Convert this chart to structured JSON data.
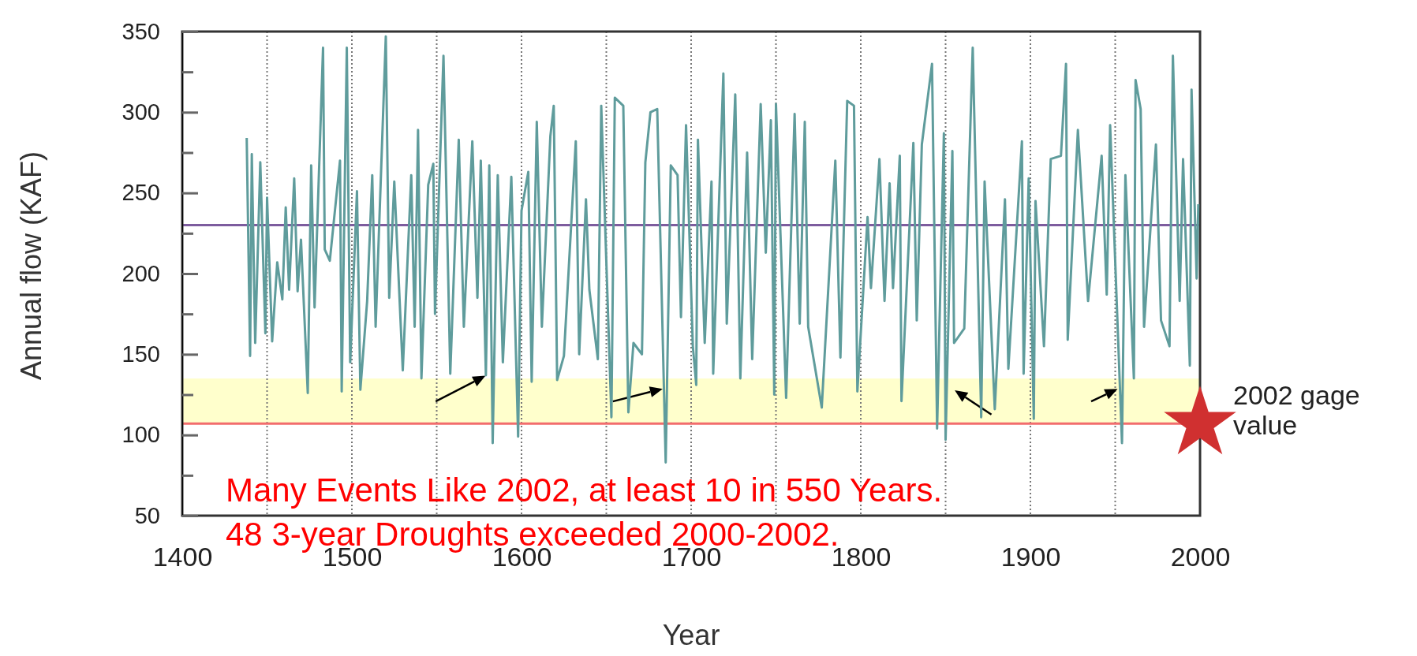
{
  "chart_data": {
    "type": "line",
    "xlabel": "Year",
    "ylabel": "Annual flow (KAF)",
    "xlim": [
      1400,
      2000
    ],
    "xticks": [
      1400,
      1500,
      1600,
      1700,
      1800,
      1900,
      2000
    ],
    "ylim": [
      50,
      350
    ],
    "yticks": [
      50,
      {
        "value": 75,
        "label": null
      },
      100,
      {
        "value": 125,
        "label": null
      },
      150,
      {
        "value": 175,
        "label": null
      },
      200,
      {
        "value": 225,
        "label": null
      },
      250,
      {
        "value": 275,
        "label": null
      },
      300,
      {
        "value": 325,
        "label": null
      },
      350
    ],
    "grid": "x",
    "marker": "none",
    "line_style": "solid",
    "series": [
      {
        "color": "#5f9c9c",
        "x": [
          1438,
          1440,
          1441,
          1443,
          1446,
          1449,
          1450,
          1453,
          1456,
          1459,
          1461,
          1463,
          1466,
          1468,
          1470,
          1474,
          1476,
          1478,
          1483,
          1484,
          1487,
          1493,
          1494,
          1497,
          1499,
          1503,
          1505,
          1509,
          1512,
          1514,
          1520,
          1522,
          1525,
          1530,
          1535,
          1537,
          1539,
          1541,
          1545,
          1548,
          1549,
          1554,
          1558,
          1563,
          1566,
          1571,
          1574,
          1576,
          1579,
          1581,
          1583,
          1586,
          1589,
          1594,
          1598,
          1600,
          1604,
          1606,
          1609,
          1612,
          1617,
          1619,
          1621,
          1625,
          1632,
          1634,
          1638,
          1640,
          1645,
          1647,
          1653,
          1655,
          1660,
          1663,
          1666,
          1671,
          1673,
          1676,
          1680,
          1682,
          1685,
          1688,
          1692,
          1694,
          1697,
          1701,
          1703,
          1704,
          1708,
          1712,
          1713,
          1719,
          1721,
          1726,
          1729,
          1733,
          1736,
          1741,
          1744,
          1747,
          1749,
          1750,
          1756,
          1761,
          1764,
          1767,
          1769,
          1777,
          1785,
          1788,
          1792,
          1796,
          1798,
          1804,
          1806,
          1811,
          1814,
          1817,
          1819,
          1823,
          1824,
          1831,
          1833,
          1836,
          1842,
          1845,
          1849,
          1850,
          1854,
          1855,
          1861,
          1866,
          1871,
          1873,
          1879,
          1885,
          1887,
          1895,
          1896,
          1899,
          1902,
          1903,
          1908,
          1912,
          1918,
          1921,
          1922,
          1928,
          1934,
          1942,
          1945,
          1947,
          1954,
          1956,
          1961,
          1962,
          1965,
          1967,
          1974,
          1977,
          1982,
          1984,
          1988,
          1990,
          1994,
          1995,
          1998,
          1999
        ],
        "values": [
          284,
          149,
          274,
          157,
          269,
          163,
          247,
          158,
          207,
          184,
          241,
          190,
          259,
          189,
          221,
          126,
          267,
          179,
          340,
          215,
          208,
          270,
          127,
          340,
          145,
          251,
          128,
          183,
          261,
          167,
          347,
          185,
          257,
          140,
          261,
          167,
          289,
          135,
          255,
          268,
          175,
          335,
          138,
          283,
          167,
          282,
          185,
          270,
          137,
          267,
          95,
          261,
          145,
          260,
          99,
          239,
          263,
          133,
          294,
          167,
          285,
          304,
          134,
          149,
          282,
          150,
          246,
          190,
          147,
          304,
          111,
          309,
          304,
          114,
          157,
          150,
          269,
          300,
          302,
          215,
          83,
          267,
          261,
          173,
          292,
          155,
          131,
          283,
          157,
          257,
          138,
          324,
          169,
          311,
          135,
          275,
          147,
          305,
          213,
          295,
          125,
          305,
          123,
          299,
          169,
          294,
          167,
          117,
          270,
          148,
          307,
          304,
          127,
          235,
          191,
          271,
          183,
          256,
          191,
          273,
          121,
          281,
          171,
          280,
          330,
          104,
          287,
          97,
          276,
          157,
          166,
          340,
          111,
          257,
          116,
          246,
          141,
          282,
          138,
          259,
          110,
          245,
          155,
          271,
          273,
          330,
          159,
          289,
          183,
          273,
          187,
          292,
          95,
          261,
          135,
          320,
          302,
          167,
          280,
          171,
          155,
          335,
          183,
          271,
          143,
          314,
          197,
          243
        ]
      },
      {
        "type": "scatter",
        "marker": "star",
        "color": "#d03030",
        "x": [
          2000
        ],
        "values": [
          107
        ]
      }
    ],
    "ref_lines": [
      {
        "axis": "y",
        "value": 230,
        "color": "#7d5c9e"
      },
      {
        "axis": "y",
        "value": 107,
        "color": "#f26d6d"
      }
    ],
    "bands": [
      {
        "axis": "y",
        "from": 107,
        "to": 135,
        "color": "#ffffcc"
      }
    ],
    "annotations": [
      {
        "text": "2002 gage value",
        "x": 2000,
        "y": 107
      },
      "Many Events Like 2002, at least 10 in 550 Years.",
      "48 3-year Droughts exceeded 2000-2002."
    ]
  }
}
